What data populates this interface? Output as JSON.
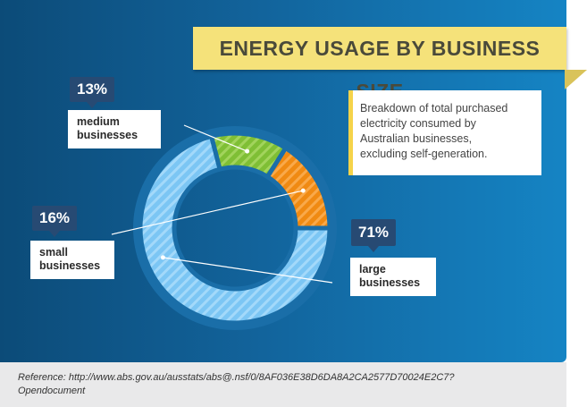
{
  "title": "ENERGY USAGE BY BUSINESS SIZE",
  "description": [
    "Breakdown of total purchased",
    "electricity consumed by",
    "Australian businesses,",
    "excluding self-generation."
  ],
  "chart_data": {
    "type": "pie",
    "title": "ENERGY USAGE BY BUSINESS SIZE",
    "categories": [
      "large businesses",
      "medium businesses",
      "small businesses"
    ],
    "values": [
      71,
      13,
      16
    ],
    "value_labels": [
      "71%",
      "13%",
      "16%"
    ],
    "label_lines": [
      [
        "large",
        "businesses"
      ],
      [
        "medium",
        "businesses"
      ],
      [
        "small",
        "businesses"
      ]
    ],
    "colors": [
      "#7cc6f4",
      "#8cc63f",
      "#f7941d"
    ]
  },
  "reference": [
    "Reference: http://www.abs.gov.au/ausstats/abs@.nsf/0/8AF036E38D6DA8A2CA2577D70024E2C7?",
    "Opendocument"
  ],
  "colors": {
    "background_dark": "#0c4b78",
    "background_light": "#1584c4",
    "banner": "#f5e27a",
    "badge": "#274a73"
  }
}
